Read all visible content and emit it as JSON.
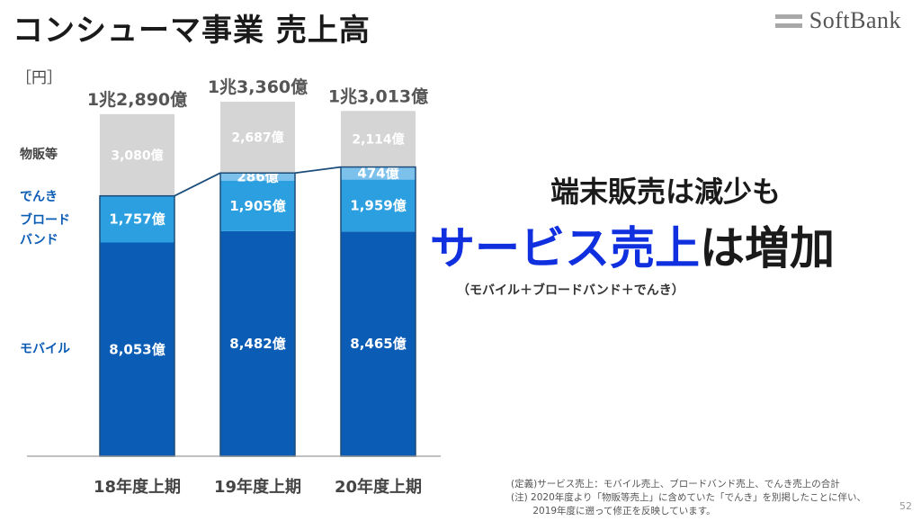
{
  "title": "コンシューマ事業 売上高",
  "logo": {
    "name": "SoftBank"
  },
  "unit_label": "［円］",
  "segment_labels": {
    "goods": "物販等",
    "denki": "でんき",
    "broadband_1": "ブロード",
    "broadband_2": "バンド",
    "mobile": "モバイル"
  },
  "headline": {
    "line1": "端末販売は減少も",
    "line2_highlight": "サービス売上",
    "line2_rest": "は増加",
    "note": "（モバイル＋ブロードバンド＋でんき）"
  },
  "notes": [
    "(定義)サービス売上：モバイル売上、ブロードバンド売上、でんき売上の合計",
    "(注) 2020年度より「物販等売上」に含めていた「でんき」を別掲したことに伴い、",
    "　　 2019年度に遡って修正を反映しています。"
  ],
  "page_number": "52",
  "colors": {
    "mobile": "#0b5cb5",
    "broadband": "#2b9fe0",
    "denki": "#7cc0ec",
    "goods": "#d5d5d5",
    "connector": "#1c4d7a",
    "label_blue": "#0b5cb5"
  },
  "chart_data": {
    "type": "bar",
    "stacked": true,
    "categories": [
      "18年度上期",
      "19年度上期",
      "20年度上期"
    ],
    "series": [
      {
        "key": "mobile",
        "values": [
          8053,
          8482,
          8465
        ],
        "labels": [
          "8,053億",
          "8,482億",
          "8,465億"
        ]
      },
      {
        "key": "broadband",
        "values": [
          1757,
          1905,
          1959
        ],
        "labels": [
          "1,757億",
          "1,905億",
          "1,959億"
        ]
      },
      {
        "key": "denki",
        "values": [
          0,
          286,
          474
        ],
        "labels": [
          "",
          "286億",
          "474億"
        ]
      },
      {
        "key": "goods",
        "values": [
          3080,
          2687,
          2114
        ],
        "labels": [
          "3,080億",
          "2,687億",
          "2,114億"
        ]
      }
    ],
    "totals": [
      "1兆2,890億",
      "1兆3,360億",
      "1兆3,013億"
    ],
    "ylim": [
      0,
      13360
    ],
    "grid": false,
    "legend": "left"
  }
}
